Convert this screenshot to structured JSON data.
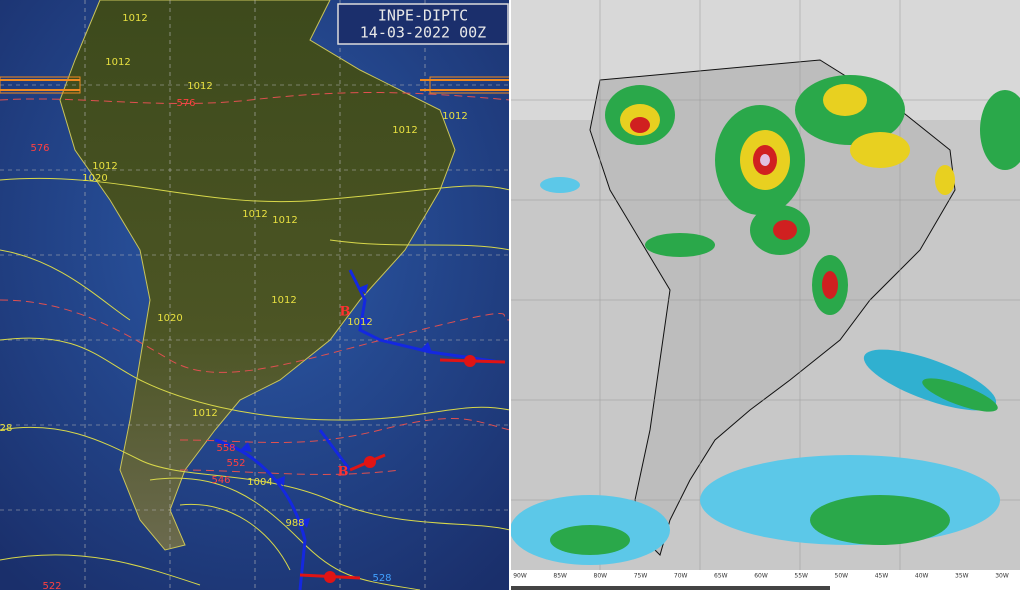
{
  "header": {
    "agency": "INPE-DIPTC",
    "datetime": "14-03-2022 00Z"
  },
  "pressure_labels": [
    "1012",
    "1012",
    "1012",
    "1012",
    "1012",
    "1012",
    "1012",
    "1012",
    "1012",
    "1012",
    "1012",
    "1020",
    "1020",
    "1004",
    "988",
    "28"
  ],
  "thickness_labels": [
    "576",
    "576",
    "558",
    "552",
    "546",
    "528",
    "522"
  ],
  "lows": [
    "B",
    "B"
  ],
  "longitude_scale": [
    "90W",
    "85W",
    "80W",
    "75W",
    "70W",
    "65W",
    "60W",
    "55W",
    "50W",
    "45W",
    "40W",
    "35W",
    "30W"
  ]
}
